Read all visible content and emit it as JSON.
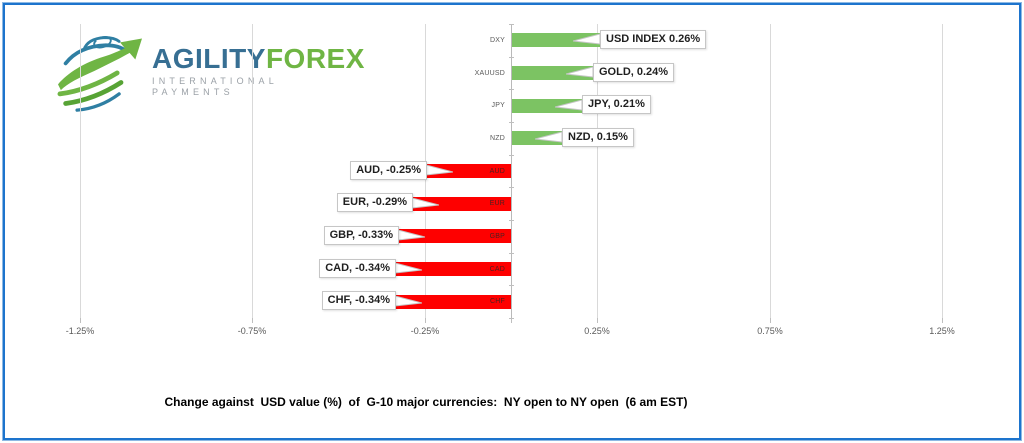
{
  "logo": {
    "brand_primary": "AGILITY",
    "brand_secondary": "FOREX",
    "tagline": "INTERNATIONAL PAYMENTS"
  },
  "chart_data": {
    "type": "bar",
    "orientation": "horizontal",
    "categories": [
      "DXY",
      "XAUUSD",
      "JPY",
      "NZD",
      "AUD",
      "EUR",
      "GBP",
      "CAD",
      "CHF"
    ],
    "values": [
      0.26,
      0.24,
      0.21,
      0.15,
      -0.25,
      -0.29,
      -0.33,
      -0.34,
      -0.34
    ],
    "data_labels": [
      "USD INDEX 0.26%",
      "GOLD, 0.24%",
      "JPY, 0.21%",
      "NZD, 0.15%",
      "AUD, -0.25%",
      "EUR, -0.29%",
      "GBP, -0.33%",
      "CAD, -0.34%",
      "CHF, -0.34%"
    ],
    "x_ticks": [
      {
        "value": -1.25,
        "label": "-1.25%"
      },
      {
        "value": -0.75,
        "label": "-0.75%"
      },
      {
        "value": -0.25,
        "label": "-0.25%"
      },
      {
        "value": 0.25,
        "label": "0.25%"
      },
      {
        "value": 0.75,
        "label": "0.75%"
      },
      {
        "value": 1.25,
        "label": "1.25%"
      }
    ],
    "xlim": [
      -1.3,
      1.3
    ],
    "grid": true,
    "legend": false,
    "title": "Change against  USD value (%)  of  G-10 major currencies:  NY open to NY open  (6 am EST)"
  },
  "colors": {
    "positive_bar": "#7cc363",
    "negative_bar": "#fe0000",
    "gridline": "#d9d9d9",
    "zero_axis": "#b9b9b9",
    "axis_text": "#595959",
    "callout_border": "#c6c6c6",
    "frame_blue": "#1d74cd"
  }
}
